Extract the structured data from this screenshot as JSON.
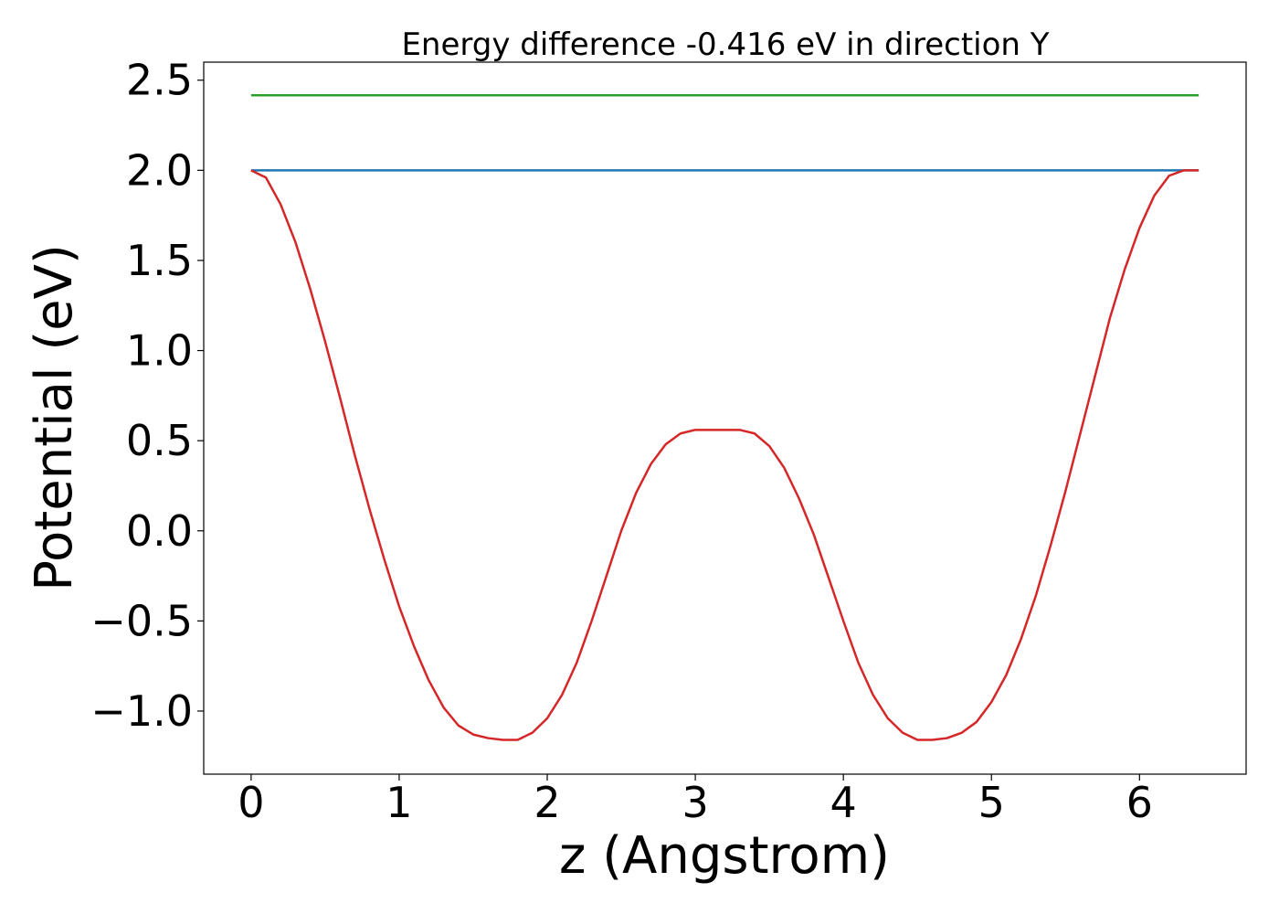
{
  "chart_data": {
    "type": "line",
    "title": "Energy difference -0.416 eV in direction Y",
    "xlabel": "z (Angstrom)",
    "ylabel": "Potential (eV)",
    "xlim": [
      -0.32,
      6.72
    ],
    "ylim": [
      -1.35,
      2.6
    ],
    "xticks": [
      0,
      1,
      2,
      3,
      4,
      5,
      6
    ],
    "xtick_labels": [
      "0",
      "1",
      "2",
      "3",
      "4",
      "5",
      "6"
    ],
    "yticks": [
      -1.0,
      -0.5,
      0.0,
      0.5,
      1.0,
      1.5,
      2.0,
      2.5
    ],
    "ytick_labels": [
      "−1.0",
      "−0.5",
      "0.0",
      "0.5",
      "1.0",
      "1.5",
      "2.0",
      "2.5"
    ],
    "grid": false,
    "series": [
      {
        "color": "#2ca02c",
        "x": [
          0,
          6.4
        ],
        "y": [
          2.416,
          2.416
        ]
      },
      {
        "color": "#1f77b4",
        "x": [
          0,
          6.4
        ],
        "y": [
          2.0,
          2.0
        ]
      },
      {
        "color": "#d62728",
        "x": [
          0.0,
          0.1,
          0.2,
          0.3,
          0.4,
          0.5,
          0.6,
          0.7,
          0.8,
          0.9,
          1.0,
          1.1,
          1.2,
          1.3,
          1.4,
          1.5,
          1.6,
          1.7,
          1.8,
          1.9,
          2.0,
          2.1,
          2.2,
          2.3,
          2.4,
          2.5,
          2.6,
          2.7,
          2.8,
          2.9,
          3.0,
          3.1,
          3.2,
          3.3,
          3.4,
          3.5,
          3.6,
          3.7,
          3.8,
          3.9,
          4.0,
          4.1,
          4.2,
          4.3,
          4.4,
          4.5,
          4.6,
          4.7,
          4.8,
          4.9,
          5.0,
          5.1,
          5.2,
          5.3,
          5.4,
          5.5,
          5.6,
          5.7,
          5.8,
          5.9,
          6.0,
          6.1,
          6.2,
          6.3,
          6.4
        ],
        "y": [
          2.0,
          1.96,
          1.81,
          1.6,
          1.34,
          1.05,
          0.74,
          0.42,
          0.12,
          -0.16,
          -0.42,
          -0.64,
          -0.83,
          -0.98,
          -1.08,
          -1.13,
          -1.15,
          -1.16,
          -1.16,
          -1.12,
          -1.04,
          -0.91,
          -0.73,
          -0.5,
          -0.25,
          0.0,
          0.21,
          0.37,
          0.48,
          0.54,
          0.56,
          0.56,
          0.56,
          0.56,
          0.54,
          0.47,
          0.35,
          0.18,
          -0.02,
          -0.26,
          -0.5,
          -0.73,
          -0.91,
          -1.04,
          -1.12,
          -1.16,
          -1.16,
          -1.15,
          -1.12,
          -1.06,
          -0.95,
          -0.8,
          -0.6,
          -0.36,
          -0.08,
          0.22,
          0.54,
          0.86,
          1.18,
          1.45,
          1.68,
          1.86,
          1.97,
          2.0,
          2.0
        ]
      }
    ]
  }
}
